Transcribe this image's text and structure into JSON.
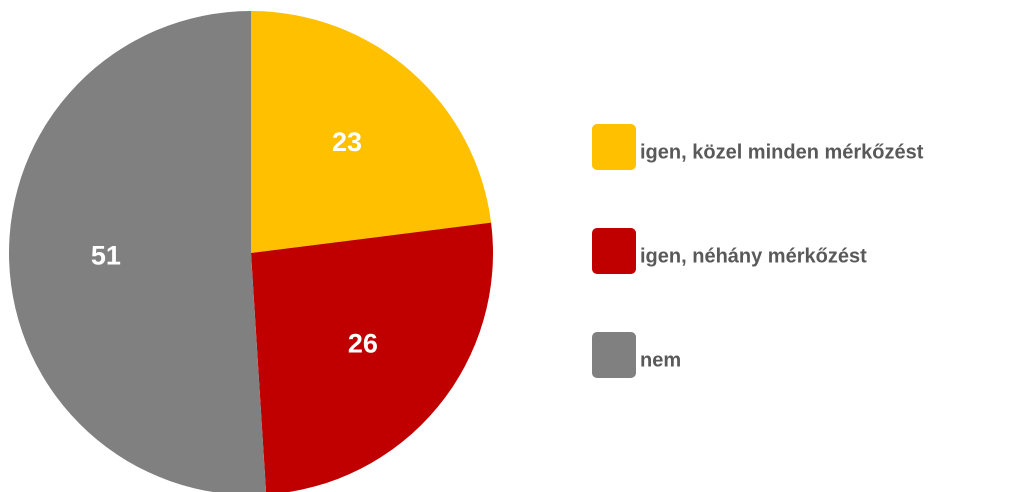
{
  "chart_data": {
    "type": "pie",
    "categories": [
      "igen, közel minden mérkőzést",
      "igen, néhány mérkőzést",
      "nem"
    ],
    "values": [
      23,
      26,
      51
    ],
    "colors": [
      "#FFC000",
      "#C00000",
      "#808080"
    ],
    "start_angle": 0,
    "direction": "clockwise",
    "legend": "right"
  }
}
